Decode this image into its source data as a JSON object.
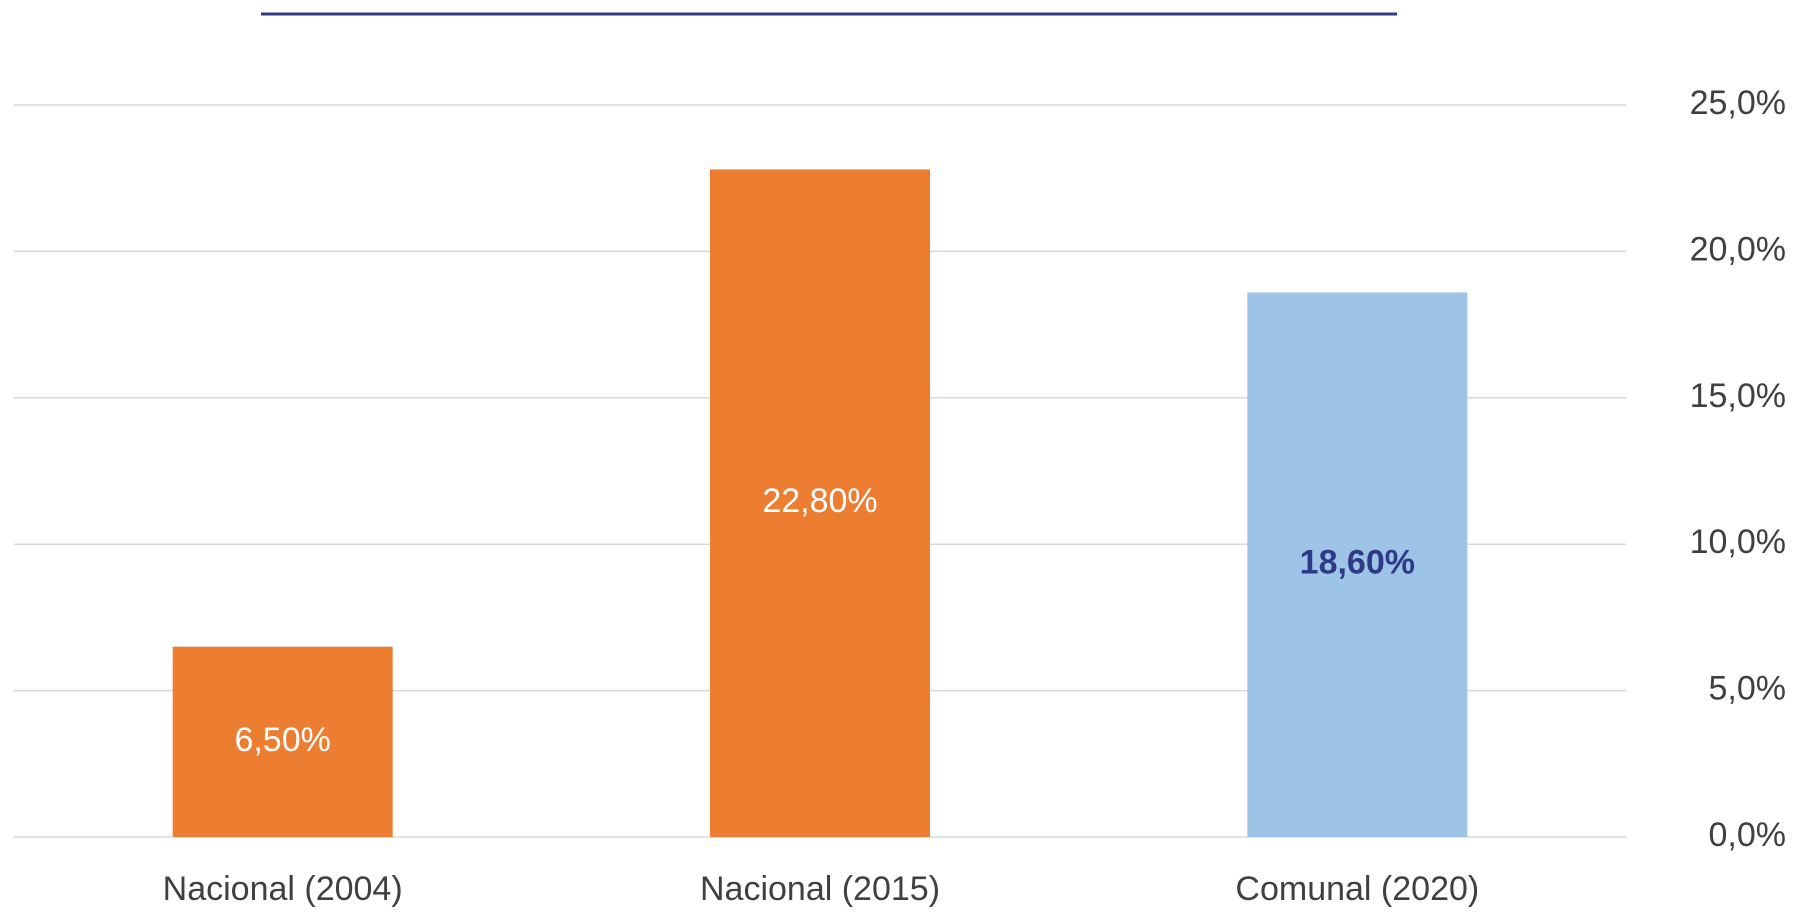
{
  "chart_data": {
    "type": "bar",
    "categories": [
      "Nacional (2004)",
      "Nacional (2015)",
      "Comunal (2020)"
    ],
    "values": [
      6.5,
      22.8,
      18.6
    ],
    "value_labels": [
      "6,50%",
      "22,80%",
      "18,60%"
    ],
    "colors": [
      "#ed7d31",
      "#ed7d31",
      "#9dc3e6"
    ],
    "value_label_colors": [
      "#ffffff",
      "#ffffff",
      "#2e3a87"
    ],
    "value_label_weights": [
      "normal",
      "normal",
      "bold"
    ],
    "ylim": [
      0,
      25
    ],
    "yticks": [
      {
        "value": 0,
        "label": "0,0%"
      },
      {
        "value": 5,
        "label": "5,0%"
      },
      {
        "value": 10,
        "label": "10,0%"
      },
      {
        "value": 15,
        "label": "15,0%"
      },
      {
        "value": 20,
        "label": "20,0%"
      },
      {
        "value": 25,
        "label": "25,0%"
      }
    ],
    "grid": true
  }
}
